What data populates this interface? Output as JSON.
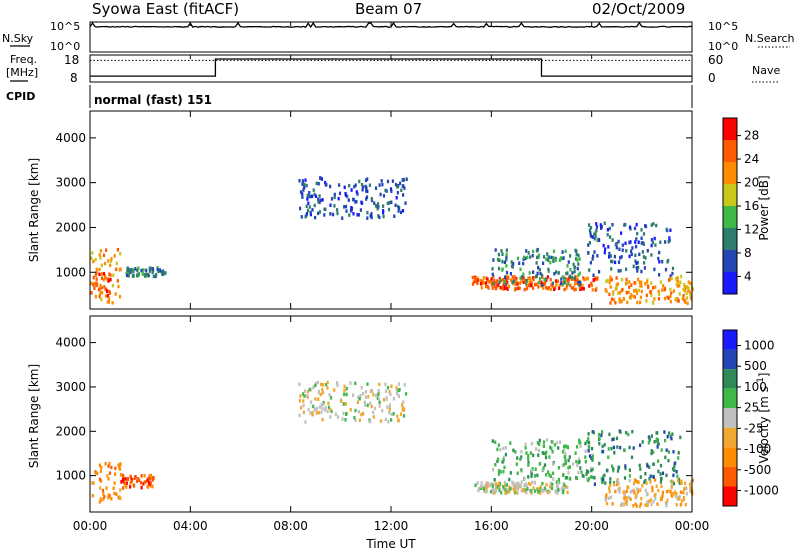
{
  "header": {
    "title": "Syowa East (fitACF)",
    "beam": "Beam 07",
    "date": "02/Oct/2009"
  },
  "strip_labels": {
    "nsky": "N.Sky",
    "nsearch": "N.Search",
    "freq": "Freq.",
    "freq_unit": "[MHz]",
    "nave": "Nave",
    "cpid": "CPID",
    "cpid_value": "normal (fast) 151"
  },
  "colors": {
    "power": [
      "#1a1aff",
      "#2446b4",
      "#2e7d6e",
      "#3fb84a",
      "#c8c81a",
      "#ff8c00",
      "#ff5a00",
      "#ff0000"
    ],
    "velocity": [
      "#ff0000",
      "#ff5a00",
      "#ff8c00",
      "#f0a830",
      "#c0c0c0",
      "#3fb84a",
      "#2e8b57",
      "#2446b4",
      "#1a1aff"
    ]
  },
  "chart_data": [
    {
      "type": "line",
      "name": "N.Sky / N.Search",
      "tick_labels_left": [
        "10^5",
        "10^0"
      ],
      "tick_labels_right": [
        "10^5",
        "10^0"
      ],
      "ylim": [
        0,
        5
      ],
      "note_level": 4.2
    },
    {
      "type": "line",
      "name": "Freq / Nave",
      "ylim_left": [
        8,
        18
      ],
      "ylim_right": [
        0,
        60
      ],
      "left_ticks": [
        "18",
        "8"
      ],
      "right_ticks": [
        "60",
        "0"
      ],
      "freq_segments": [
        {
          "from_hour": 0,
          "to_hour": 5.0,
          "freq": 10.2
        },
        {
          "from_hour": 5.0,
          "to_hour": 18.0,
          "freq": 16.5
        },
        {
          "from_hour": 18.0,
          "to_hour": 24,
          "freq": 10.2
        }
      ],
      "nave_level": 48
    },
    {
      "type": "heatmap",
      "quantity": "Power",
      "ylabel": "Slant Range [km]",
      "colorbar_label": "Power [dB]",
      "colorbar_ticks": [
        "28",
        "24",
        "20",
        "16",
        "12",
        "8",
        "4"
      ],
      "y_ticks": [
        "4000",
        "3000",
        "2000",
        "1000"
      ],
      "xlim_hours": [
        0,
        24
      ],
      "ylim_km": [
        180,
        4600
      ],
      "regions": [
        {
          "t0": 0.0,
          "t1": 1.2,
          "r0": 300,
          "r1": 1500,
          "level": 5
        },
        {
          "t0": 0.0,
          "t1": 0.8,
          "r0": 400,
          "r1": 1000,
          "level": 6
        },
        {
          "t0": 1.4,
          "t1": 3.0,
          "r0": 900,
          "r1": 1100,
          "level": 2
        },
        {
          "t0": 8.3,
          "t1": 12.6,
          "r0": 2200,
          "r1": 3100,
          "level": 1
        },
        {
          "t0": 15.2,
          "t1": 20.2,
          "r0": 600,
          "r1": 900,
          "level": 6
        },
        {
          "t0": 16.0,
          "t1": 19.5,
          "r0": 700,
          "r1": 1500,
          "level": 2
        },
        {
          "t0": 19.8,
          "t1": 23.2,
          "r0": 900,
          "r1": 2100,
          "level": 1
        },
        {
          "t0": 20.5,
          "t1": 24.0,
          "r0": 300,
          "r1": 900,
          "level": 5
        }
      ]
    },
    {
      "type": "heatmap",
      "quantity": "Velocity",
      "ylabel": "Slant Range [km]",
      "colorbar_label": "Velocity [m s^-1]",
      "colorbar_ticks": [
        "1000",
        "500",
        "100",
        "25",
        "-25",
        "-100",
        "-500",
        "-1000"
      ],
      "y_ticks": [
        "4000",
        "3000",
        "2000",
        "1000"
      ],
      "xlim_hours": [
        0,
        24
      ],
      "ylim_km": [
        180,
        4600
      ],
      "x_ticks": [
        "00:00",
        "04:00",
        "08:00",
        "12:00",
        "16:00",
        "20:00",
        "00:00"
      ],
      "xlabel": "Time UT",
      "regions": [
        {
          "t0": 0.0,
          "t1": 1.2,
          "r0": 400,
          "r1": 1300,
          "level": 2
        },
        {
          "t0": 1.2,
          "t1": 2.5,
          "r0": 700,
          "r1": 1000,
          "level": 1
        },
        {
          "t0": 8.3,
          "t1": 12.6,
          "r0": 2200,
          "r1": 3100,
          "level": 4
        },
        {
          "t0": 15.3,
          "t1": 19.0,
          "r0": 600,
          "r1": 850,
          "level": 4
        },
        {
          "t0": 16.0,
          "t1": 20.0,
          "r0": 900,
          "r1": 1800,
          "level": 5
        },
        {
          "t0": 19.8,
          "t1": 23.5,
          "r0": 800,
          "r1": 2000,
          "level": 6
        },
        {
          "t0": 20.5,
          "t1": 24.0,
          "r0": 300,
          "r1": 900,
          "level": 3
        }
      ]
    }
  ]
}
